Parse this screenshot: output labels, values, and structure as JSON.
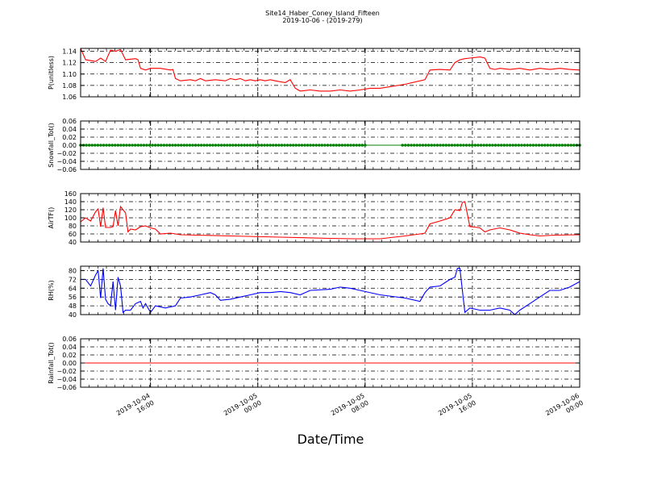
{
  "title": "Site14_Haber_Coney_Island_Fifteen",
  "subtitle": "2019-10-06 - (2019-279)",
  "xlabel": "Date/Time",
  "x_ticks": [
    {
      "l1": "2019-10-04",
      "l2": "16:00",
      "t": 0.14
    },
    {
      "l1": "2019-10-05",
      "l2": "00:00",
      "t": 0.355
    },
    {
      "l1": "2019-10-05",
      "l2": "08:00",
      "t": 0.57
    },
    {
      "l1": "2019-10-05",
      "l2": "16:00",
      "t": 0.785
    },
    {
      "l1": "2019-10-06",
      "l2": "00:00",
      "t": 1.0
    }
  ],
  "chart_data": [
    {
      "type": "line",
      "ylabel": "P(unitless)",
      "ylim": [
        1.06,
        1.145
      ],
      "yticks": [
        "1.06",
        "1.08",
        "1.10",
        "1.12",
        "1.14"
      ],
      "ytick_vals": [
        1.06,
        1.08,
        1.1,
        1.12,
        1.14
      ],
      "color": "#ff0000",
      "grid": true,
      "segments": [
        [
          [
            0,
            1.145
          ],
          [
            0.01,
            1.125
          ],
          [
            0.03,
            1.122
          ],
          [
            0.04,
            1.128
          ],
          [
            0.05,
            1.122
          ],
          [
            0.06,
            1.142
          ],
          [
            0.07,
            1.14
          ],
          [
            0.08,
            1.143
          ],
          [
            0.09,
            1.125
          ],
          [
            0.11,
            1.127
          ],
          [
            0.115,
            1.125
          ],
          [
            0.12,
            1.11
          ],
          [
            0.13,
            1.107
          ],
          [
            0.14,
            1.11
          ],
          [
            0.16,
            1.11
          ],
          [
            0.18,
            1.107
          ],
          [
            0.185,
            1.108
          ],
          [
            0.19,
            1.092
          ],
          [
            0.2,
            1.088
          ],
          [
            0.22,
            1.09
          ],
          [
            0.23,
            1.088
          ],
          [
            0.24,
            1.092
          ],
          [
            0.25,
            1.088
          ],
          [
            0.27,
            1.09
          ],
          [
            0.29,
            1.088
          ],
          [
            0.3,
            1.092
          ],
          [
            0.31,
            1.09
          ],
          [
            0.32,
            1.092
          ],
          [
            0.33,
            1.088
          ],
          [
            0.34,
            1.09
          ],
          [
            0.35,
            1.088
          ],
          [
            0.36,
            1.09
          ],
          [
            0.37,
            1.088
          ],
          [
            0.38,
            1.09
          ],
          [
            0.39,
            1.088
          ],
          [
            0.41,
            1.085
          ],
          [
            0.42,
            1.09
          ],
          [
            0.43,
            1.075
          ],
          [
            0.44,
            1.07
          ],
          [
            0.46,
            1.072
          ],
          [
            0.48,
            1.07
          ],
          [
            0.5,
            1.07
          ],
          [
            0.52,
            1.072
          ],
          [
            0.54,
            1.07
          ],
          [
            0.56,
            1.072
          ],
          [
            0.58,
            1.075
          ],
          [
            0.6,
            1.075
          ],
          [
            0.65,
            1.082
          ],
          [
            0.69,
            1.09
          ],
          [
            0.7,
            1.107
          ],
          [
            0.72,
            1.108
          ],
          [
            0.74,
            1.107
          ],
          [
            0.75,
            1.12
          ],
          [
            0.76,
            1.125
          ],
          [
            0.77,
            1.127
          ],
          [
            0.78,
            1.128
          ],
          [
            0.8,
            1.13
          ],
          [
            0.81,
            1.128
          ],
          [
            0.82,
            1.11
          ],
          [
            0.83,
            1.108
          ],
          [
            0.84,
            1.11
          ],
          [
            0.86,
            1.108
          ],
          [
            0.88,
            1.11
          ],
          [
            0.9,
            1.107
          ],
          [
            0.92,
            1.11
          ],
          [
            0.94,
            1.108
          ],
          [
            0.96,
            1.11
          ],
          [
            0.98,
            1.108
          ],
          [
            1,
            1.107
          ]
        ]
      ]
    },
    {
      "type": "scatter",
      "ylabel": "Snowfall_Tot()",
      "ylim": [
        -0.06,
        0.06
      ],
      "yticks": [
        "−0.06",
        "−0.04",
        "−0.02",
        "0.00",
        "0.02",
        "0.04",
        "0.06"
      ],
      "ytick_vals": [
        -0.06,
        -0.04,
        -0.02,
        0.0,
        0.02,
        0.04,
        0.06
      ],
      "color": "#008000",
      "grid": true,
      "value": 0.0,
      "marker_ranges": [
        [
          0.0,
          0.57
        ],
        [
          0.645,
          1.0
        ]
      ],
      "marker_count": [
        100,
        62
      ],
      "line_range": [
        0.0,
        1.0
      ]
    },
    {
      "type": "line",
      "ylabel": "AirTF()",
      "ylim": [
        40,
        160
      ],
      "yticks": [
        "40",
        "60",
        "80",
        "100",
        "120",
        "140",
        "160"
      ],
      "ytick_vals": [
        40,
        60,
        80,
        100,
        120,
        140,
        160
      ],
      "color": "#ff0000",
      "grid": true,
      "segments": [
        [
          [
            0,
            90
          ],
          [
            0.01,
            100
          ],
          [
            0.02,
            92
          ],
          [
            0.03,
            115
          ],
          [
            0.035,
            122
          ],
          [
            0.04,
            78
          ],
          [
            0.045,
            125
          ],
          [
            0.05,
            76
          ],
          [
            0.06,
            76
          ],
          [
            0.065,
            78
          ],
          [
            0.07,
            118
          ],
          [
            0.075,
            80
          ],
          [
            0.08,
            128
          ],
          [
            0.09,
            112
          ],
          [
            0.095,
            65
          ],
          [
            0.1,
            72
          ],
          [
            0.11,
            70
          ],
          [
            0.12,
            78
          ],
          [
            0.13,
            80
          ],
          [
            0.14,
            75
          ],
          [
            0.15,
            72
          ],
          [
            0.16,
            60
          ],
          [
            0.18,
            62
          ],
          [
            0.2,
            58
          ],
          [
            0.3,
            55
          ],
          [
            0.4,
            52
          ],
          [
            0.5,
            49
          ],
          [
            0.55,
            48
          ],
          [
            0.6,
            48
          ],
          [
            0.65,
            55
          ],
          [
            0.68,
            60
          ],
          [
            0.69,
            62
          ],
          [
            0.7,
            85
          ],
          [
            0.72,
            92
          ],
          [
            0.74,
            100
          ],
          [
            0.75,
            120
          ],
          [
            0.76,
            118
          ],
          [
            0.765,
            138
          ],
          [
            0.77,
            140
          ],
          [
            0.78,
            78
          ],
          [
            0.79,
            77
          ],
          [
            0.8,
            75
          ],
          [
            0.81,
            65
          ],
          [
            0.82,
            70
          ],
          [
            0.84,
            75
          ],
          [
            0.86,
            70
          ],
          [
            0.88,
            62
          ],
          [
            0.9,
            58
          ],
          [
            0.92,
            55
          ],
          [
            0.95,
            57
          ],
          [
            1,
            58
          ]
        ]
      ]
    },
    {
      "type": "line",
      "ylabel": "RH(%)",
      "ylim": [
        40,
        84
      ],
      "yticks": [
        "40",
        "48",
        "56",
        "64",
        "72",
        "80"
      ],
      "ytick_vals": [
        40,
        48,
        56,
        64,
        72,
        80
      ],
      "color": "#0000ff",
      "grid": true,
      "segments": [
        [
          [
            0,
            72
          ],
          [
            0.01,
            72
          ],
          [
            0.02,
            66
          ],
          [
            0.03,
            76
          ],
          [
            0.035,
            80
          ],
          [
            0.04,
            55
          ],
          [
            0.045,
            82
          ],
          [
            0.05,
            54
          ],
          [
            0.055,
            50
          ],
          [
            0.06,
            48
          ],
          [
            0.065,
            70
          ],
          [
            0.07,
            44
          ],
          [
            0.075,
            74
          ],
          [
            0.08,
            66
          ],
          [
            0.085,
            42
          ],
          [
            0.09,
            44
          ],
          [
            0.1,
            44
          ],
          [
            0.11,
            50
          ],
          [
            0.12,
            52
          ],
          [
            0.125,
            46
          ],
          [
            0.13,
            50
          ],
          [
            0.14,
            42
          ],
          [
            0.15,
            48
          ],
          [
            0.17,
            46
          ],
          [
            0.19,
            48
          ],
          [
            0.2,
            55
          ],
          [
            0.22,
            56
          ],
          [
            0.24,
            58
          ],
          [
            0.26,
            60
          ],
          [
            0.27,
            58
          ],
          [
            0.28,
            53
          ],
          [
            0.3,
            54
          ],
          [
            0.32,
            56
          ],
          [
            0.34,
            58
          ],
          [
            0.36,
            60
          ],
          [
            0.38,
            60
          ],
          [
            0.4,
            61
          ],
          [
            0.42,
            60
          ],
          [
            0.44,
            58
          ],
          [
            0.46,
            62
          ],
          [
            0.5,
            63
          ],
          [
            0.52,
            65
          ],
          [
            0.54,
            64
          ],
          [
            0.56,
            62
          ],
          [
            0.6,
            58
          ],
          [
            0.65,
            55
          ],
          [
            0.68,
            52
          ],
          [
            0.69,
            60
          ],
          [
            0.7,
            65
          ],
          [
            0.72,
            66
          ],
          [
            0.74,
            72
          ],
          [
            0.75,
            74
          ],
          [
            0.755,
            82
          ],
          [
            0.76,
            82
          ],
          [
            0.77,
            42
          ],
          [
            0.78,
            46
          ],
          [
            0.8,
            44
          ],
          [
            0.82,
            44
          ],
          [
            0.84,
            46
          ],
          [
            0.86,
            44
          ],
          [
            0.87,
            40
          ],
          [
            0.88,
            44
          ],
          [
            0.9,
            50
          ],
          [
            0.92,
            56
          ],
          [
            0.94,
            62
          ],
          [
            0.96,
            62
          ],
          [
            0.98,
            65
          ],
          [
            1,
            70
          ]
        ]
      ]
    },
    {
      "type": "line",
      "ylabel": "Rainfall_Tot()",
      "ylim": [
        -0.06,
        0.06
      ],
      "yticks": [
        "−0.06",
        "−0.04",
        "−0.02",
        "0.00",
        "0.02",
        "0.04",
        "0.06"
      ],
      "ytick_vals": [
        -0.06,
        -0.04,
        -0.02,
        0.0,
        0.02,
        0.04,
        0.06
      ],
      "color": "#ff0000",
      "grid": true,
      "segments": [
        [
          [
            0,
            0
          ],
          [
            1,
            0
          ]
        ]
      ]
    }
  ]
}
